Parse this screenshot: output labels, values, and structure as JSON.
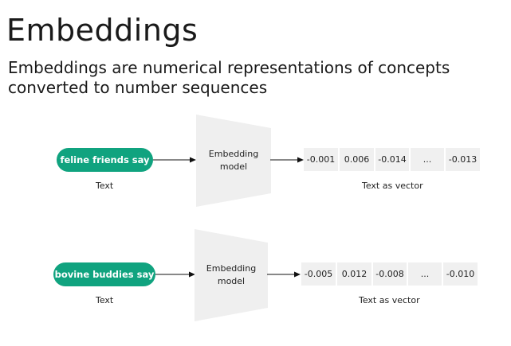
{
  "title": "Embeddings",
  "subtitle": "Embeddings are numerical representations of concepts converted to number sequences",
  "rows": [
    {
      "input": "feline friends say",
      "input_caption": "Text",
      "model_line1": "Embedding",
      "model_line2": "model",
      "vector": [
        "-0.001",
        "0.006",
        "-0.014",
        "...",
        "-0.013"
      ],
      "vector_caption": "Text as vector"
    },
    {
      "input": "bovine buddies say",
      "input_caption": "Text",
      "model_line1": "Embedding",
      "model_line2": "model",
      "vector": [
        "-0.005",
        "0.012",
        "-0.008",
        "...",
        "-0.010"
      ],
      "vector_caption": "Text as vector"
    }
  ],
  "colors": {
    "pill": "#10a37f",
    "model_fill": "#efefef",
    "cell_fill": "#f0f0f0"
  }
}
